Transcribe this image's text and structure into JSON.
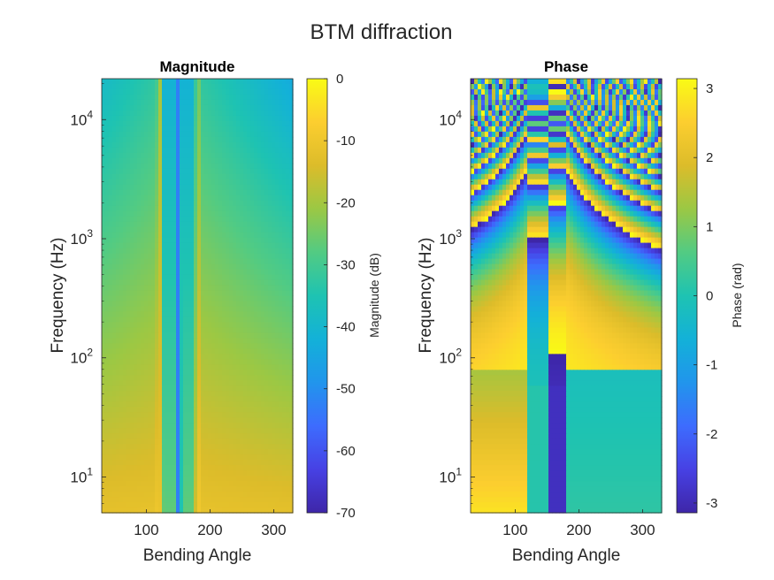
{
  "figure": {
    "title": "BTM diffraction"
  },
  "chart_data": [
    {
      "type": "heatmap",
      "title": "Magnitude",
      "xlabel": "Bending Angle",
      "ylabel": "Frequency (Hz)",
      "xlim": [
        30,
        330
      ],
      "ylim": [
        5,
        22050
      ],
      "yscale": "log",
      "x_ticks": [
        "100",
        "200",
        "300"
      ],
      "x_tick_values": [
        100,
        200,
        300
      ],
      "y_ticks": [
        {
          "base": "10",
          "exp": "1",
          "value": 10
        },
        {
          "base": "10",
          "exp": "2",
          "value": 100
        },
        {
          "base": "10",
          "exp": "3",
          "value": 1000
        },
        {
          "base": "10",
          "exp": "4",
          "value": 10000
        }
      ],
      "colorbar": {
        "label": "Magnitude (dB)",
        "range": [
          -70,
          0
        ],
        "ticks": [
          "0",
          "-10",
          "-20",
          "-30",
          "-40",
          "-50",
          "-60",
          "-70"
        ],
        "tick_values": [
          0,
          -10,
          -20,
          -30,
          -40,
          -50,
          -60,
          -70
        ],
        "colormap": "parula"
      },
      "features": {
        "shadow_boundaries_deg": [
          120,
          180
        ],
        "null_angle_deg": 150
      }
    },
    {
      "type": "heatmap",
      "title": "Phase",
      "xlabel": "Bending Angle",
      "ylabel": "Frequency (Hz)",
      "xlim": [
        30,
        330
      ],
      "ylim": [
        5,
        22050
      ],
      "yscale": "log",
      "x_ticks": [
        "100",
        "200",
        "300"
      ],
      "x_tick_values": [
        100,
        200,
        300
      ],
      "y_ticks": [
        {
          "base": "10",
          "exp": "1",
          "value": 10
        },
        {
          "base": "10",
          "exp": "2",
          "value": 100
        },
        {
          "base": "10",
          "exp": "3",
          "value": 1000
        },
        {
          "base": "10",
          "exp": "4",
          "value": 10000
        }
      ],
      "colorbar": {
        "label": "Phase (rad)",
        "range": [
          -3.1416,
          3.1416
        ],
        "ticks": [
          "3",
          "2",
          "1",
          "0",
          "-1",
          "-2",
          "-3"
        ],
        "tick_values": [
          3,
          2,
          1,
          0,
          -1,
          -2,
          -3
        ],
        "colormap": "parula"
      },
      "features": {
        "shadow_boundaries_deg": [
          120,
          180
        ],
        "null_angle_deg": 150
      }
    }
  ]
}
